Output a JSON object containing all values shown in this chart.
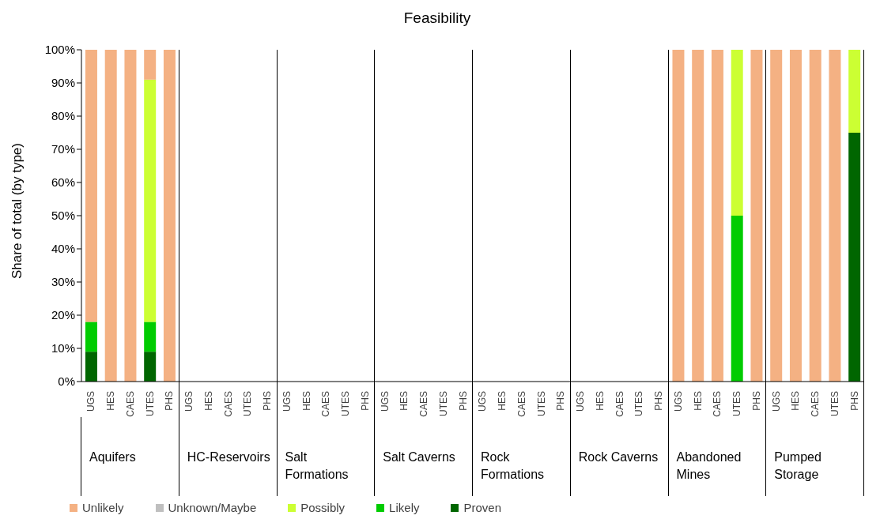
{
  "chart_data": {
    "type": "bar",
    "title": "Feasibility",
    "ylabel": "Share of total (by type)",
    "stacked": true,
    "legend": "bottom",
    "grid": false,
    "categories": [
      "UGS",
      "HES",
      "CAES",
      "UTES",
      "PHS",
      "UGS",
      "HES",
      "CAES",
      "UTES",
      "PHS",
      "UGS",
      "HES",
      "CAES",
      "UTES",
      "PHS",
      "UGS",
      "HES",
      "CAES",
      "UTES",
      "PHS",
      "UGS",
      "HES",
      "CAES",
      "UTES",
      "PHS",
      "UGS",
      "HES",
      "CAES",
      "UTES",
      "PHS",
      "UGS",
      "HES",
      "CAES",
      "UTES",
      "PHS",
      "UGS",
      "HES",
      "CAES",
      "UTES",
      "PHS"
    ],
    "annotations": [
      "Aquifers",
      "HC-Reservoirs",
      "Salt Formations",
      "Salt Caverns",
      "Rock Formations",
      "Rock Caverns",
      "Abandoned Mines",
      "Pumped Storage"
    ],
    "ylim": [
      0,
      100
    ],
    "yticks": [
      {
        "value": 0,
        "label": "0%"
      },
      {
        "value": 10,
        "label": "10%"
      },
      {
        "value": 20,
        "label": "20%"
      },
      {
        "value": 30,
        "label": "30%"
      },
      {
        "value": 40,
        "label": "40%"
      },
      {
        "value": 50,
        "label": "50%"
      },
      {
        "value": 60,
        "label": "60%"
      },
      {
        "value": 70,
        "label": "70%"
      },
      {
        "value": 80,
        "label": "80%"
      },
      {
        "value": 90,
        "label": "90%"
      },
      {
        "value": 100,
        "label": "100%"
      }
    ],
    "series": [
      {
        "name": "Proven",
        "color": "#006600",
        "values": [
          9,
          0,
          0,
          9,
          0,
          null,
          null,
          null,
          null,
          null,
          null,
          null,
          null,
          null,
          null,
          null,
          null,
          null,
          null,
          null,
          null,
          null,
          null,
          null,
          null,
          null,
          null,
          null,
          null,
          null,
          0,
          0,
          0,
          0,
          0,
          0,
          0,
          0,
          0,
          75
        ]
      },
      {
        "name": "Likely",
        "color": "#00cc00",
        "values": [
          9,
          0,
          0,
          9,
          0,
          null,
          null,
          null,
          null,
          null,
          null,
          null,
          null,
          null,
          null,
          null,
          null,
          null,
          null,
          null,
          null,
          null,
          null,
          null,
          null,
          null,
          null,
          null,
          null,
          null,
          0,
          0,
          0,
          50,
          0,
          0,
          0,
          0,
          0,
          0
        ]
      },
      {
        "name": "Possibly",
        "color": "#ccff33",
        "values": [
          0,
          0,
          0,
          73,
          0,
          null,
          null,
          null,
          null,
          null,
          null,
          null,
          null,
          null,
          null,
          null,
          null,
          null,
          null,
          null,
          null,
          null,
          null,
          null,
          null,
          null,
          null,
          null,
          null,
          null,
          0,
          0,
          0,
          50,
          0,
          0,
          0,
          0,
          0,
          25
        ]
      },
      {
        "name": "Unknown/Maybe",
        "color": "#bfbfbf",
        "values": [
          0,
          0,
          0,
          0,
          0,
          null,
          null,
          null,
          null,
          null,
          null,
          null,
          null,
          null,
          null,
          null,
          null,
          null,
          null,
          null,
          null,
          null,
          null,
          null,
          null,
          null,
          null,
          null,
          null,
          null,
          0,
          0,
          0,
          0,
          0,
          0,
          0,
          0,
          0,
          0
        ]
      },
      {
        "name": "Unlikely",
        "color": "#f4b183",
        "values": [
          82,
          100,
          100,
          9,
          100,
          null,
          null,
          null,
          null,
          null,
          null,
          null,
          null,
          null,
          null,
          null,
          null,
          null,
          null,
          null,
          null,
          null,
          null,
          null,
          null,
          null,
          null,
          null,
          null,
          null,
          100,
          100,
          100,
          0,
          100,
          100,
          100,
          100,
          100,
          0
        ]
      }
    ]
  }
}
